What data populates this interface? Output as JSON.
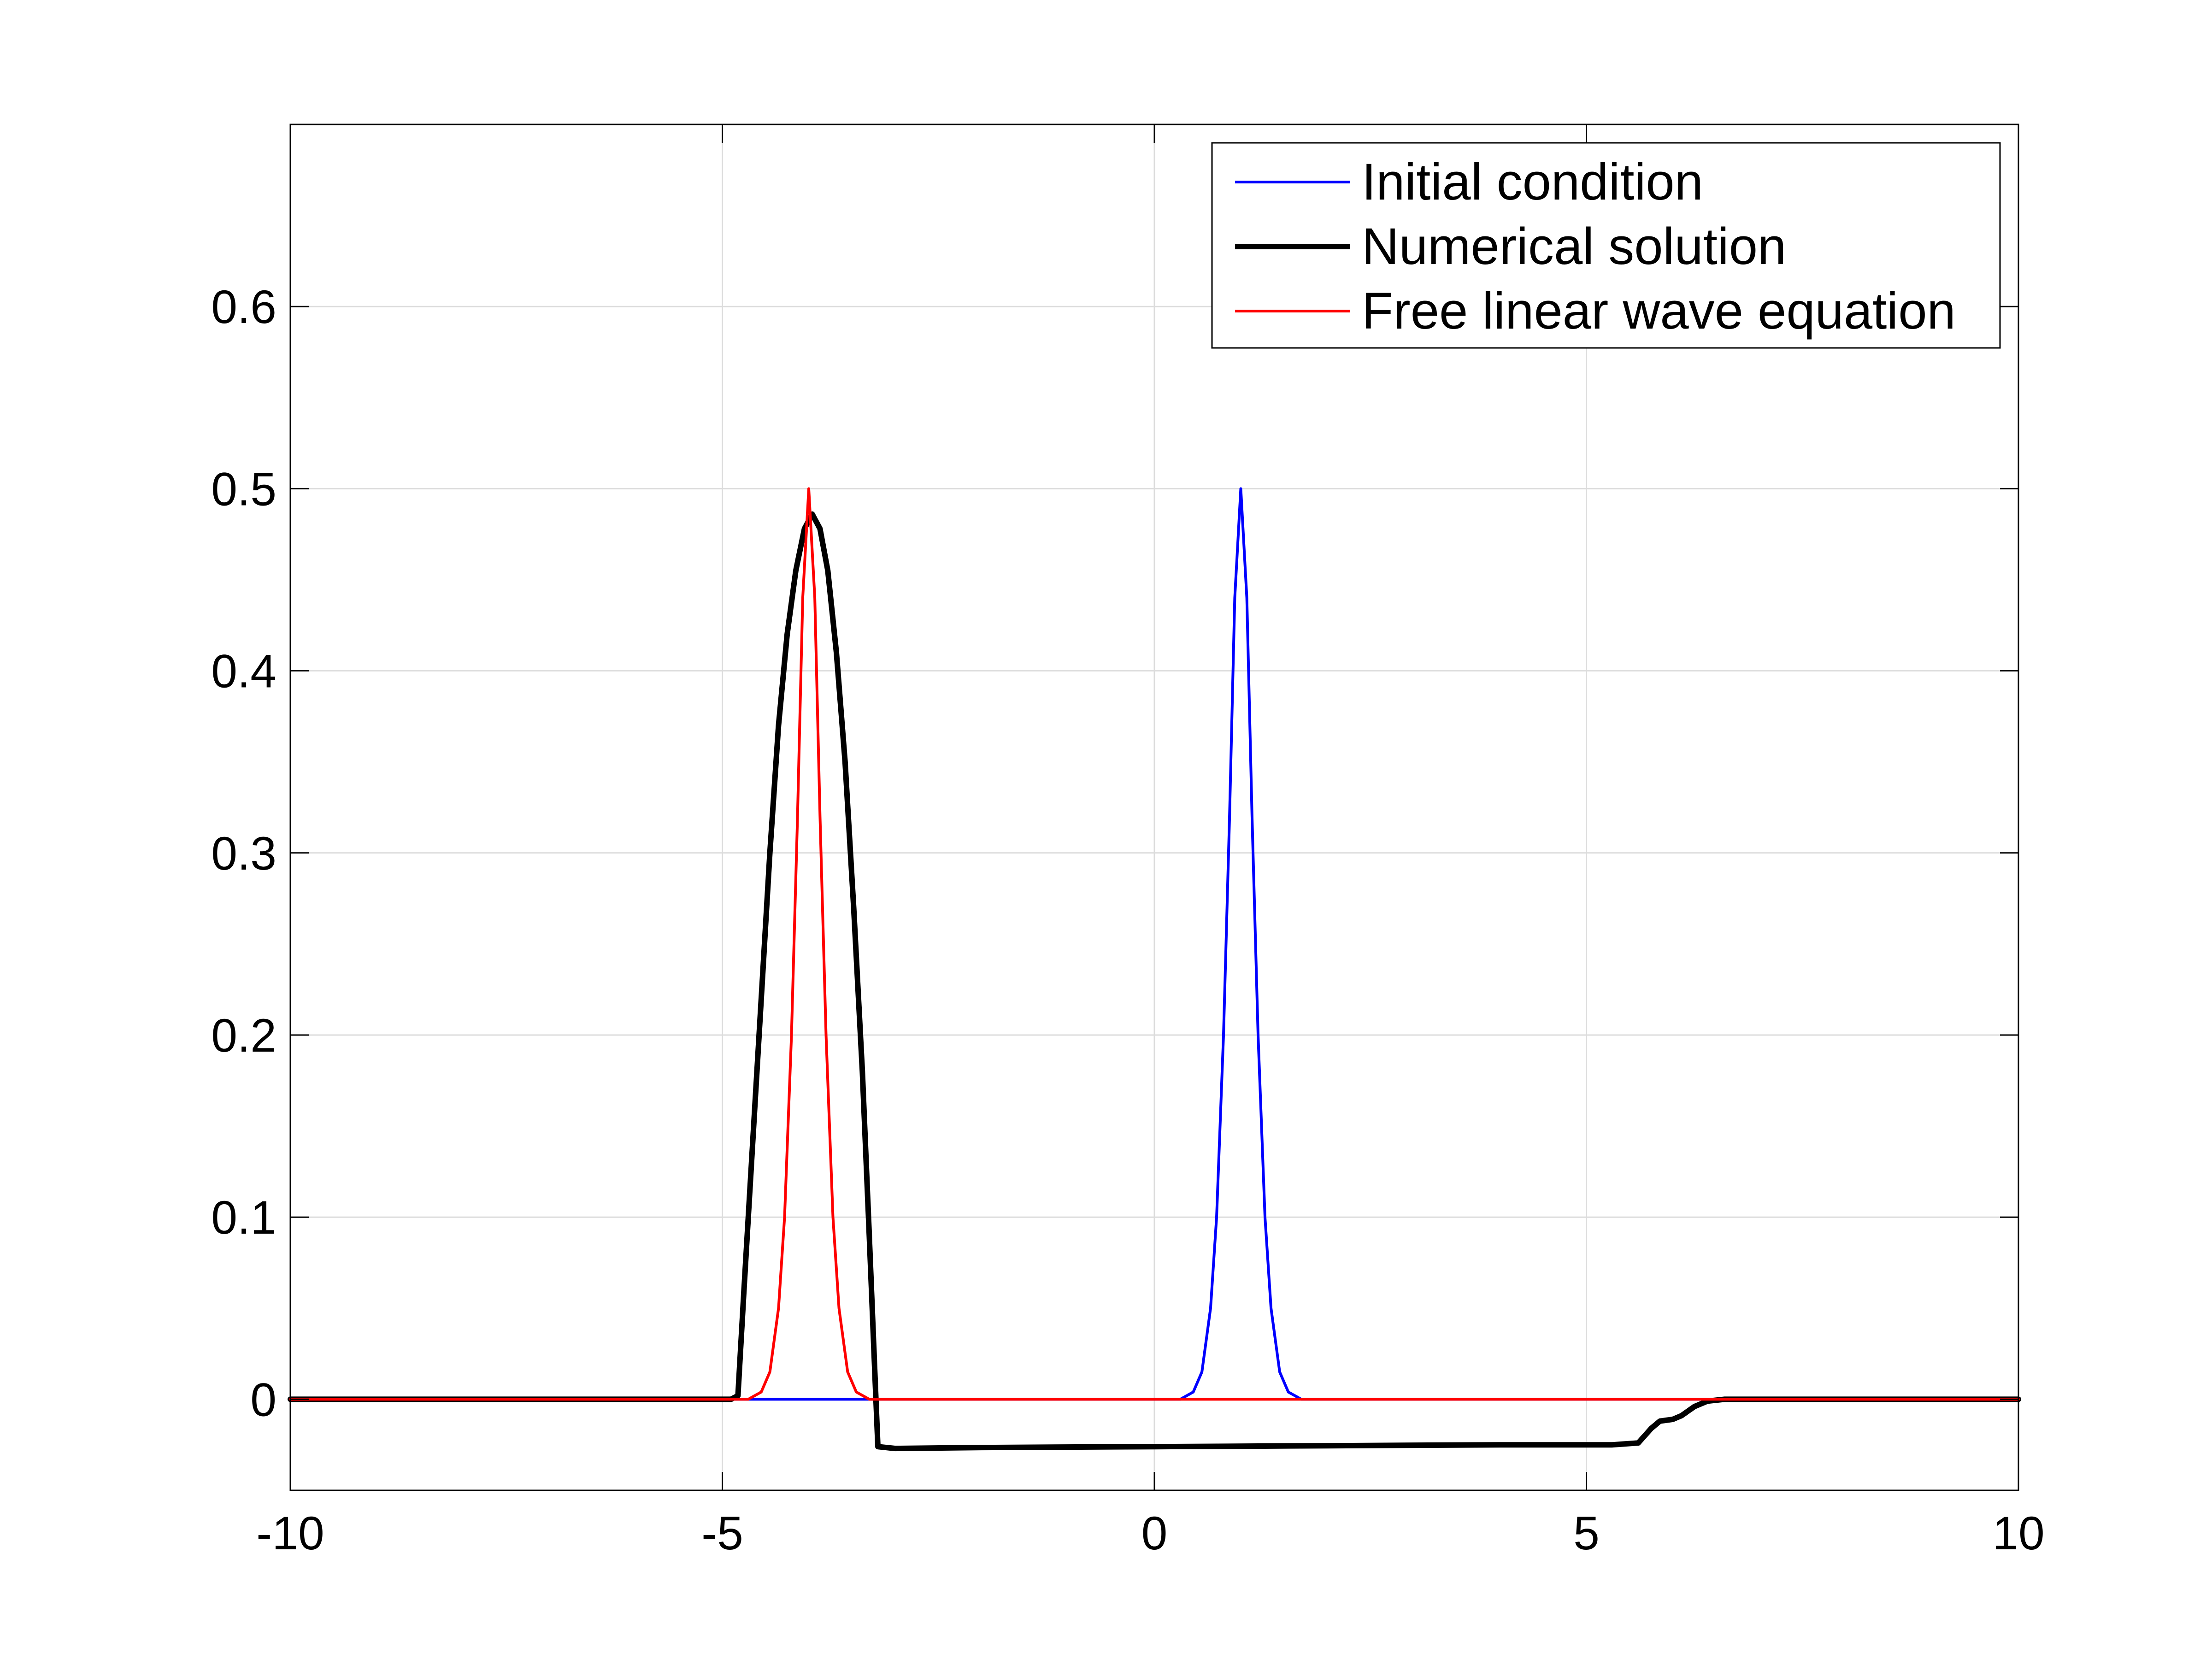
{
  "chart_data": {
    "type": "line",
    "title": "",
    "xlabel": "",
    "ylabel": "",
    "xlim": [
      -10,
      10
    ],
    "ylim": [
      -0.05,
      0.7
    ],
    "xticks": [
      -10,
      -5,
      0,
      5,
      10
    ],
    "xtick_labels": [
      "-10",
      "-5",
      "0",
      "5",
      "10"
    ],
    "yticks": [
      0,
      0.1,
      0.2,
      0.3,
      0.4,
      0.5,
      0.6
    ],
    "ytick_labels": [
      "0",
      "0.1",
      "0.2",
      "0.3",
      "0.4",
      "0.5",
      "0.6"
    ],
    "grid": true,
    "legend": {
      "placement": "top-right"
    },
    "series": [
      {
        "name": "Initial condition",
        "color": "#0000ff",
        "x": [
          -10,
          0.3,
          0.45,
          0.55,
          0.65,
          0.72,
          0.8,
          0.87,
          0.93,
          1.0,
          1.07,
          1.13,
          1.2,
          1.28,
          1.35,
          1.45,
          1.55,
          1.7,
          10
        ],
        "y": [
          0,
          0,
          0.004,
          0.015,
          0.05,
          0.1,
          0.2,
          0.32,
          0.44,
          0.5,
          0.44,
          0.32,
          0.2,
          0.1,
          0.05,
          0.015,
          0.004,
          0,
          0
        ]
      },
      {
        "name": "Numerical solution",
        "color": "#000000",
        "x": [
          -10,
          -4.9,
          -4.82,
          -4.75,
          -4.65,
          -4.55,
          -4.45,
          -4.35,
          -4.25,
          -4.15,
          -4.05,
          -3.96,
          -3.87,
          -3.78,
          -3.68,
          -3.58,
          -3.48,
          -3.38,
          -3.3,
          -3.24,
          -3.2,
          -3.0,
          -2.0,
          0,
          2.0,
          4.0,
          5.3,
          5.6,
          5.75,
          5.85,
          6.0,
          6.1,
          6.25,
          6.4,
          6.6,
          10
        ],
        "y": [
          0,
          0,
          0.002,
          0.06,
          0.14,
          0.22,
          0.3,
          0.37,
          0.42,
          0.455,
          0.478,
          0.486,
          0.478,
          0.455,
          0.41,
          0.35,
          0.27,
          0.18,
          0.09,
          0.02,
          -0.026,
          -0.027,
          -0.0265,
          -0.026,
          -0.0255,
          -0.025,
          -0.025,
          -0.024,
          -0.016,
          -0.012,
          -0.011,
          -0.009,
          -0.004,
          -0.001,
          0,
          0
        ]
      },
      {
        "name": "Free linear wave equation",
        "color": "#ff0000",
        "x": [
          -10,
          -4.7,
          -4.55,
          -4.45,
          -4.35,
          -4.28,
          -4.2,
          -4.13,
          -4.07,
          -4.0,
          -3.93,
          -3.87,
          -3.8,
          -3.72,
          -3.65,
          -3.55,
          -3.45,
          -3.3,
          10
        ],
        "y": [
          0,
          0,
          0.004,
          0.015,
          0.05,
          0.1,
          0.2,
          0.32,
          0.44,
          0.5,
          0.44,
          0.32,
          0.2,
          0.1,
          0.05,
          0.015,
          0.004,
          0,
          0
        ]
      }
    ]
  }
}
